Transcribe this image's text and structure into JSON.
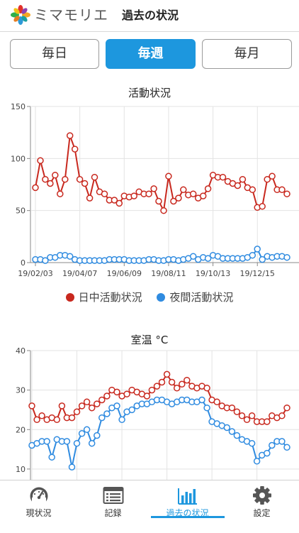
{
  "app": {
    "name": "ミマモリエ",
    "title": "過去の状況"
  },
  "period_tabs": [
    {
      "label": "毎日",
      "active": false
    },
    {
      "label": "毎週",
      "active": true
    },
    {
      "label": "毎月",
      "active": false
    }
  ],
  "colors": {
    "accent": "#1d97de",
    "red_series": "#c8281e",
    "blue_series": "#2f8be0"
  },
  "chart_data": [
    {
      "type": "line",
      "title": "活動状況",
      "x_tick_labels": [
        "19/02/03",
        "19/04/07",
        "19/06/09",
        "19/08/11",
        "19/10/13",
        "19/12/15"
      ],
      "ylim": [
        0,
        150
      ],
      "y_ticks": [
        0,
        50,
        100,
        150
      ],
      "grid": true,
      "legend_position": "bottom",
      "series": [
        {
          "name": "日中活動状況",
          "color": "#c8281e",
          "values": [
            72,
            98,
            80,
            76,
            84,
            66,
            80,
            122,
            109,
            80,
            76,
            62,
            82,
            68,
            66,
            60,
            60,
            57,
            64,
            63,
            64,
            68,
            66,
            66,
            71,
            59,
            50,
            83,
            59,
            62,
            70,
            65,
            66,
            62,
            64,
            71,
            84,
            82,
            82,
            78,
            76,
            74,
            80,
            72,
            70,
            53,
            54,
            80,
            83,
            70,
            70,
            66
          ]
        },
        {
          "name": "夜間活動状況",
          "color": "#2f8be0",
          "values": [
            3,
            3,
            2,
            5,
            5,
            7,
            7,
            6,
            3,
            2,
            2,
            2,
            2,
            2,
            2,
            3,
            3,
            3,
            3,
            2,
            2,
            2,
            2,
            3,
            3,
            2,
            2,
            3,
            3,
            2,
            3,
            4,
            6,
            3,
            5,
            4,
            7,
            6,
            4,
            4,
            4,
            4,
            4,
            5,
            7,
            13,
            3,
            6,
            5,
            6,
            6,
            5
          ]
        }
      ]
    },
    {
      "type": "line",
      "title": "室温 °C",
      "ylim": [
        8,
        40
      ],
      "y_ticks": [
        10,
        20,
        30,
        40
      ],
      "grid": true,
      "series": [
        {
          "color": "#c8281e",
          "values": [
            26,
            22.5,
            23.5,
            22.5,
            23,
            22.5,
            26,
            23,
            23,
            24.5,
            26,
            27,
            25.5,
            26.5,
            27.5,
            28.5,
            30,
            29.5,
            28.5,
            29,
            30,
            29.5,
            29,
            28.5,
            30,
            31,
            32,
            34,
            32,
            30.5,
            31.5,
            32.5,
            31,
            30.5,
            31,
            30.5,
            27.5,
            27,
            26,
            25.5,
            25.5,
            24.5,
            23.5,
            22.5,
            23.5,
            22,
            22,
            22,
            23.5,
            23,
            23.5,
            25.5
          ]
        },
        {
          "color": "#2f8be0",
          "values": [
            16,
            16.5,
            17,
            17,
            13,
            17.5,
            17,
            17,
            10.5,
            16.5,
            19,
            20,
            16.5,
            18.5,
            23,
            24,
            25.5,
            26,
            22.5,
            24.5,
            25,
            26,
            26.5,
            26.5,
            27,
            27.5,
            27.5,
            27,
            26.5,
            27,
            27.5,
            27.5,
            27,
            27,
            27.5,
            25.5,
            22,
            21.5,
            21,
            20.5,
            19.5,
            18.5,
            17.5,
            17,
            16.5,
            12,
            13.5,
            14,
            16,
            17,
            17,
            15.5
          ]
        }
      ]
    }
  ],
  "tabbar": [
    {
      "label": "現状況",
      "icon": "gauge-icon",
      "active": false
    },
    {
      "label": "記録",
      "icon": "list-icon",
      "active": false
    },
    {
      "label": "過去の状況",
      "icon": "bar-chart-icon",
      "active": true
    },
    {
      "label": "設定",
      "icon": "gear-icon",
      "active": false
    }
  ]
}
